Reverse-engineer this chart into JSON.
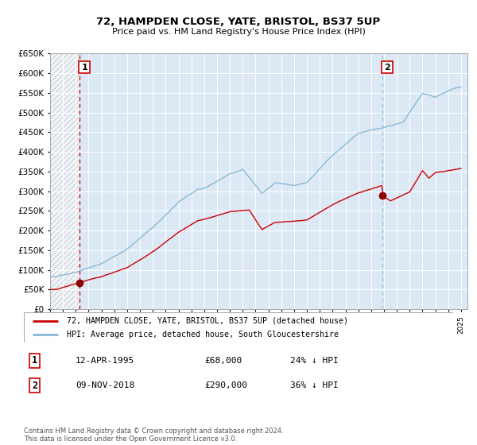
{
  "title": "72, HAMPDEN CLOSE, YATE, BRISTOL, BS37 5UP",
  "subtitle": "Price paid vs. HM Land Registry's House Price Index (HPI)",
  "legend_line1": "72, HAMPDEN CLOSE, YATE, BRISTOL, BS37 5UP (detached house)",
  "legend_line2": "HPI: Average price, detached house, South Gloucestershire",
  "annotation1_date": "12-APR-1995",
  "annotation1_price": "£68,000",
  "annotation1_hpi": "24% ↓ HPI",
  "annotation2_date": "09-NOV-2018",
  "annotation2_price": "£290,000",
  "annotation2_hpi": "36% ↓ HPI",
  "footer": "Contains HM Land Registry data © Crown copyright and database right 2024.\nThis data is licensed under the Open Government Licence v3.0.",
  "sale1_year": 1995.28,
  "sale1_price": 68000,
  "sale2_year": 2018.86,
  "sale2_price": 290000,
  "hpi_color": "#89b8d8",
  "price_color": "#cc0000",
  "dot_color": "#8b0000",
  "vline_color_sale1": "#cc0000",
  "vline_color_sale2": "#89b8d8",
  "bg_color": "#dce9f5",
  "grid_color": "#ffffff",
  "ylim": [
    0,
    650000
  ],
  "xlim_start": 1993.0,
  "xlim_end": 2025.5
}
